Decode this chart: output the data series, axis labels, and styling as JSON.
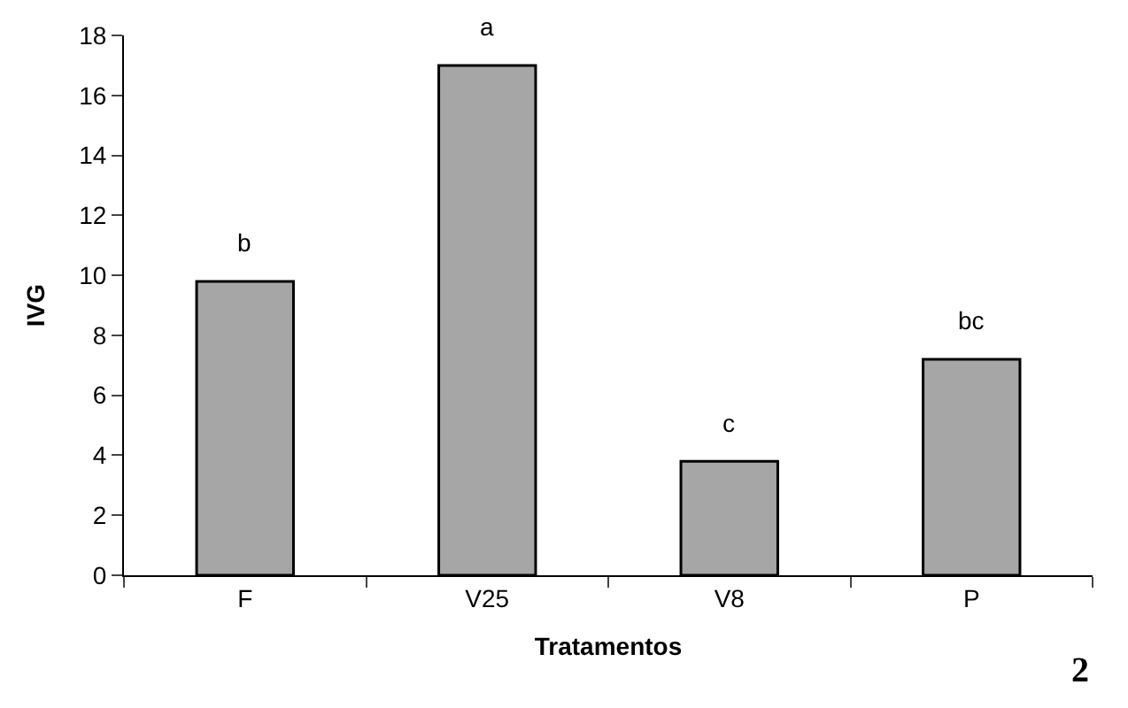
{
  "chart_data": {
    "type": "bar",
    "xlabel": "Tratamentos",
    "ylabel": "IVG",
    "categories": [
      "F",
      "V25",
      "V8",
      "P"
    ],
    "values": [
      9.8,
      17.0,
      3.8,
      7.2
    ],
    "color": "#a6a6a6",
    "ylim": [
      0,
      18
    ],
    "yticks": [
      0,
      2,
      4,
      6,
      8,
      10,
      12,
      14,
      16,
      18
    ],
    "annotations": [
      {
        "text": "b",
        "x": "F",
        "y": 9.8
      },
      {
        "text": "a",
        "x": "V25",
        "y": 17.0
      },
      {
        "text": "c",
        "x": "V8",
        "y": 3.8
      },
      {
        "text": "bc",
        "x": "P",
        "y": 7.2
      },
      "2"
    ]
  }
}
